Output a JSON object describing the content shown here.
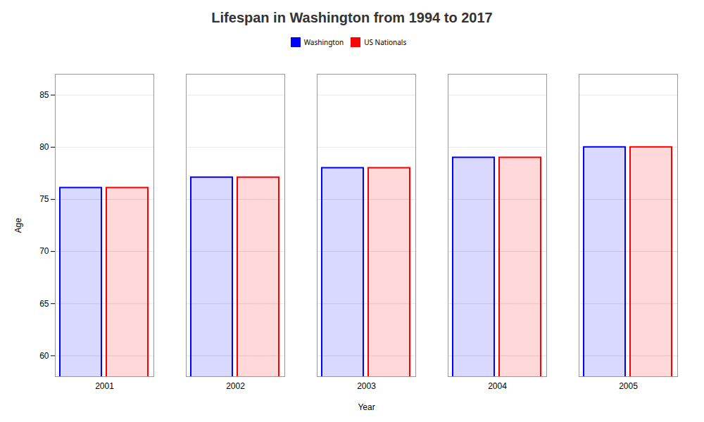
{
  "chart_data": {
    "type": "bar",
    "title": "Lifespan in Washington from 1994 to 2017",
    "x_label": "Year",
    "y_label": "Age",
    "categories": [
      "2001",
      "2002",
      "2003",
      "2004",
      "2005"
    ],
    "series": [
      {
        "name": "Washington",
        "color": "#0000ff",
        "values": [
          76.1,
          77.1,
          78.0,
          79.0,
          80.0
        ]
      },
      {
        "name": "US Nationals",
        "color": "#ff0000",
        "values": [
          76.1,
          77.1,
          78.0,
          79.0,
          80.0
        ]
      }
    ],
    "ylim": [
      58,
      87
    ],
    "yticks": [
      60,
      65,
      70,
      75,
      80,
      85
    ],
    "grid": true,
    "legend": "top"
  }
}
